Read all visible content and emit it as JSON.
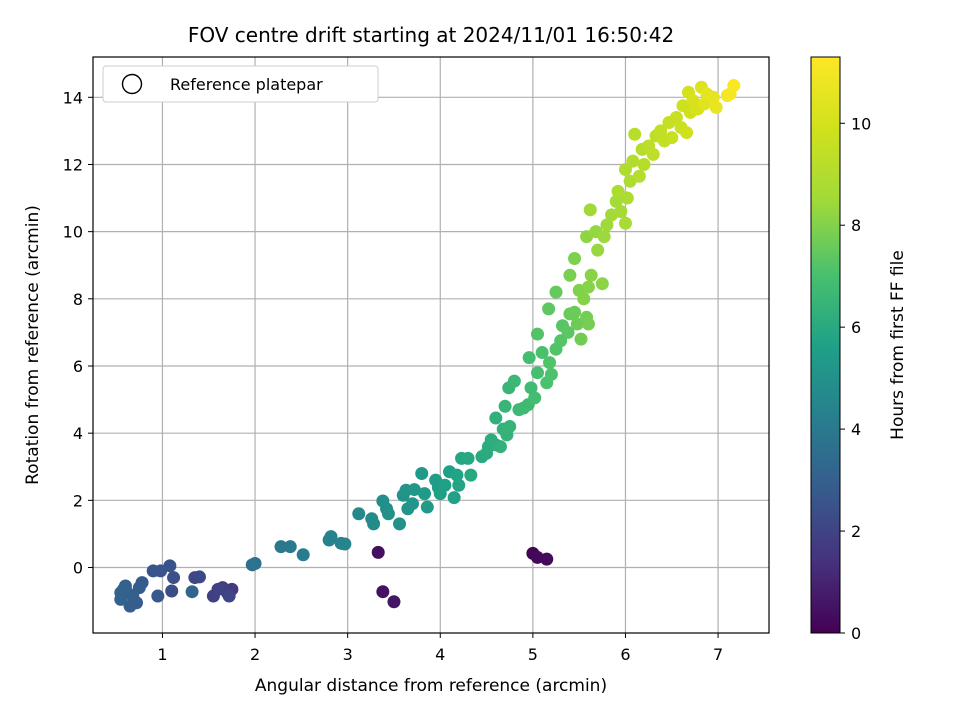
{
  "chart_data": {
    "type": "scatter",
    "title": "FOV centre drift starting at 2024/11/01 16:50:42",
    "xlabel": "Angular distance from reference (arcmin)",
    "ylabel": "Rotation from reference (arcmin)",
    "colorbar_label": "Hours from first FF file",
    "xlim": [
      0.25,
      7.55
    ],
    "ylim": [
      -1.95,
      15.2
    ],
    "clim": [
      0,
      11.3
    ],
    "colormap": "viridis",
    "grid": true,
    "legend": {
      "placement": "upper-left",
      "entries": [
        "Reference platepar"
      ]
    },
    "xticks": [
      "1",
      "2",
      "3",
      "4",
      "5",
      "6",
      "7"
    ],
    "xtick_values": [
      1,
      2,
      3,
      4,
      5,
      6,
      7
    ],
    "yticks": [
      "0",
      "2",
      "4",
      "6",
      "8",
      "10",
      "12",
      "14"
    ],
    "ytick_values": [
      0,
      2,
      4,
      6,
      8,
      10,
      12,
      14
    ],
    "cticks": [
      "0",
      "2",
      "4",
      "6",
      "8",
      "10"
    ],
    "ctick_values": [
      0,
      2,
      4,
      6,
      8,
      10
    ],
    "points": [
      [
        5.0,
        0.42,
        0.1
      ],
      [
        5.05,
        0.3,
        0.2
      ],
      [
        5.15,
        0.25,
        0.3
      ],
      [
        3.33,
        0.45,
        0.4
      ],
      [
        3.38,
        -0.72,
        0.5
      ],
      [
        3.5,
        -1.02,
        0.6
      ],
      [
        1.7,
        -0.75,
        1.6
      ],
      [
        1.75,
        -0.65,
        1.7
      ],
      [
        1.65,
        -0.6,
        1.8
      ],
      [
        1.55,
        -0.85,
        1.9
      ],
      [
        1.6,
        -0.65,
        2.0
      ],
      [
        1.72,
        -0.85,
        2.05
      ],
      [
        1.35,
        -0.3,
        2.1
      ],
      [
        1.4,
        -0.28,
        2.2
      ],
      [
        1.1,
        -0.7,
        2.3
      ],
      [
        1.12,
        -0.3,
        2.4
      ],
      [
        1.08,
        0.05,
        2.5
      ],
      [
        0.98,
        -0.1,
        2.6
      ],
      [
        0.9,
        -0.1,
        2.6
      ],
      [
        0.95,
        -0.85,
        2.7
      ],
      [
        0.78,
        -0.45,
        2.75
      ],
      [
        0.75,
        -0.6,
        2.8
      ],
      [
        0.72,
        -1.05,
        2.85
      ],
      [
        0.65,
        -1.15,
        2.9
      ],
      [
        0.68,
        -0.85,
        2.95
      ],
      [
        0.6,
        -0.55,
        3.0
      ],
      [
        0.62,
        -0.75,
        3.0
      ],
      [
        0.55,
        -0.75,
        3.05
      ],
      [
        0.58,
        -0.65,
        3.1
      ],
      [
        0.55,
        -0.95,
        3.1
      ],
      [
        1.32,
        -0.72,
        3.2
      ],
      [
        1.97,
        0.08,
        3.6
      ],
      [
        2.0,
        0.12,
        3.7
      ],
      [
        2.28,
        0.62,
        3.9
      ],
      [
        2.38,
        0.62,
        4.0
      ],
      [
        2.52,
        0.38,
        4.1
      ],
      [
        2.8,
        0.82,
        4.3
      ],
      [
        2.82,
        0.92,
        4.35
      ],
      [
        2.93,
        0.72,
        4.4
      ],
      [
        2.97,
        0.7,
        4.45
      ],
      [
        3.12,
        1.6,
        4.6
      ],
      [
        3.26,
        1.45,
        4.7
      ],
      [
        3.28,
        1.3,
        4.75
      ],
      [
        3.38,
        1.98,
        4.85
      ],
      [
        3.42,
        1.75,
        4.9
      ],
      [
        3.44,
        1.6,
        4.95
      ],
      [
        3.56,
        1.3,
        5.0
      ],
      [
        3.6,
        2.15,
        5.05
      ],
      [
        3.63,
        2.3,
        5.1
      ],
      [
        3.65,
        1.75,
        5.15
      ],
      [
        3.7,
        1.9,
        5.2
      ],
      [
        3.72,
        2.32,
        5.25
      ],
      [
        3.8,
        2.8,
        5.3
      ],
      [
        3.83,
        2.2,
        5.35
      ],
      [
        3.86,
        1.8,
        5.4
      ],
      [
        3.95,
        2.6,
        5.45
      ],
      [
        3.98,
        2.38,
        5.5
      ],
      [
        4.0,
        2.2,
        5.55
      ],
      [
        4.05,
        2.45,
        5.6
      ],
      [
        4.1,
        2.85,
        5.65
      ],
      [
        4.15,
        2.08,
        5.7
      ],
      [
        4.18,
        2.75,
        5.75
      ],
      [
        4.2,
        2.45,
        5.8
      ],
      [
        4.23,
        3.25,
        5.85
      ],
      [
        4.3,
        3.25,
        5.9
      ],
      [
        4.33,
        2.75,
        5.95
      ],
      [
        4.45,
        3.3,
        6.0
      ],
      [
        4.5,
        3.4,
        6.05
      ],
      [
        4.52,
        3.6,
        6.1
      ],
      [
        4.55,
        3.8,
        6.15
      ],
      [
        4.6,
        3.65,
        6.2
      ],
      [
        4.6,
        4.45,
        6.25
      ],
      [
        4.65,
        3.6,
        6.3
      ],
      [
        4.68,
        4.12,
        6.35
      ],
      [
        4.72,
        3.95,
        6.4
      ],
      [
        4.75,
        4.2,
        6.45
      ],
      [
        4.7,
        4.8,
        6.5
      ],
      [
        4.74,
        5.35,
        6.55
      ],
      [
        4.8,
        5.55,
        6.6
      ],
      [
        4.85,
        4.7,
        6.65
      ],
      [
        4.9,
        4.75,
        6.7
      ],
      [
        4.95,
        4.85,
        6.75
      ],
      [
        4.98,
        5.35,
        6.8
      ],
      [
        5.02,
        5.05,
        6.85
      ],
      [
        4.96,
        6.25,
        6.9
      ],
      [
        5.05,
        5.8,
        6.95
      ],
      [
        5.1,
        6.4,
        7.0
      ],
      [
        5.15,
        5.5,
        7.05
      ],
      [
        5.2,
        5.75,
        7.1
      ],
      [
        5.18,
        6.1,
        7.15
      ],
      [
        5.25,
        6.5,
        7.2
      ],
      [
        5.05,
        6.95,
        7.2
      ],
      [
        5.3,
        6.75,
        7.25
      ],
      [
        5.32,
        7.2,
        7.3
      ],
      [
        5.38,
        7.0,
        7.35
      ],
      [
        5.17,
        7.7,
        7.4
      ],
      [
        5.25,
        8.2,
        7.5
      ],
      [
        5.4,
        7.55,
        7.55
      ],
      [
        5.45,
        7.6,
        7.6
      ],
      [
        5.48,
        7.25,
        7.65
      ],
      [
        5.52,
        6.8,
        7.7
      ],
      [
        5.58,
        7.45,
        7.75
      ],
      [
        5.6,
        7.25,
        7.8
      ],
      [
        5.4,
        8.7,
        7.85
      ],
      [
        5.45,
        9.2,
        7.9
      ],
      [
        5.5,
        8.25,
        7.95
      ],
      [
        5.55,
        8.0,
        8.0
      ],
      [
        5.6,
        8.35,
        8.05
      ],
      [
        5.63,
        8.7,
        8.1
      ],
      [
        5.75,
        8.45,
        8.15
      ],
      [
        5.58,
        9.85,
        8.2
      ],
      [
        5.68,
        10.0,
        8.3
      ],
      [
        5.7,
        9.45,
        8.35
      ],
      [
        5.77,
        9.85,
        8.4
      ],
      [
        5.8,
        10.2,
        8.45
      ],
      [
        5.62,
        10.65,
        8.5
      ],
      [
        5.85,
        10.5,
        8.55
      ],
      [
        5.9,
        10.9,
        8.6
      ],
      [
        5.95,
        10.6,
        8.65
      ],
      [
        6.0,
        10.25,
        8.7
      ],
      [
        5.92,
        11.2,
        8.8
      ],
      [
        6.02,
        11.0,
        8.85
      ],
      [
        6.05,
        11.5,
        8.9
      ],
      [
        6.0,
        11.85,
        8.95
      ],
      [
        6.08,
        12.1,
        9.0
      ],
      [
        6.15,
        11.65,
        9.05
      ],
      [
        6.18,
        12.45,
        9.1
      ],
      [
        6.2,
        12.0,
        9.15
      ],
      [
        6.1,
        12.9,
        9.2
      ],
      [
        6.25,
        12.55,
        9.3
      ],
      [
        6.3,
        12.3,
        9.35
      ],
      [
        6.33,
        12.85,
        9.4
      ],
      [
        6.38,
        13.0,
        9.45
      ],
      [
        6.42,
        12.7,
        9.5
      ],
      [
        6.47,
        13.25,
        9.55
      ],
      [
        6.5,
        12.8,
        9.6
      ],
      [
        6.55,
        13.4,
        9.65
      ],
      [
        6.6,
        13.1,
        9.7
      ],
      [
        6.62,
        13.75,
        9.8
      ],
      [
        6.66,
        12.95,
        9.85
      ],
      [
        6.7,
        13.55,
        9.9
      ],
      [
        6.68,
        14.15,
        10.0
      ],
      [
        6.73,
        13.9,
        10.05
      ],
      [
        6.78,
        13.65,
        10.1
      ],
      [
        6.82,
        14.3,
        10.3
      ],
      [
        6.85,
        13.8,
        10.4
      ],
      [
        6.88,
        14.1,
        10.5
      ],
      [
        6.95,
        14.0,
        10.6
      ],
      [
        6.98,
        13.7,
        10.7
      ],
      [
        7.1,
        14.05,
        11.0
      ],
      [
        7.13,
        14.1,
        11.1
      ],
      [
        7.17,
        14.35,
        11.2
      ]
    ]
  }
}
